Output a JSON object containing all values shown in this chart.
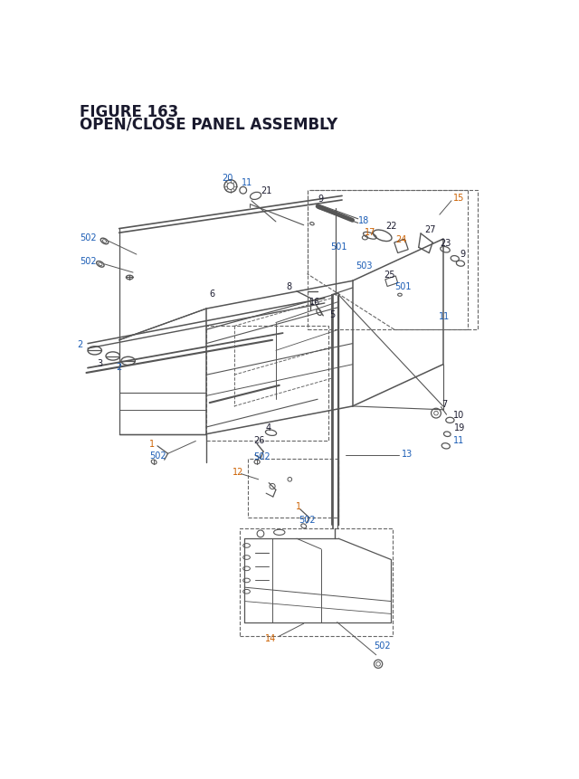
{
  "title_line1": "FIGURE 163",
  "title_line2": "OPEN/CLOSE PANEL ASSEMBLY",
  "bg_color": "#ffffff",
  "black": "#1a1a2e",
  "blue": "#1a5cb5",
  "orange": "#cc6000",
  "gray_line": "#555555",
  "dash_color": "#666666",
  "part_gray": "#888888"
}
